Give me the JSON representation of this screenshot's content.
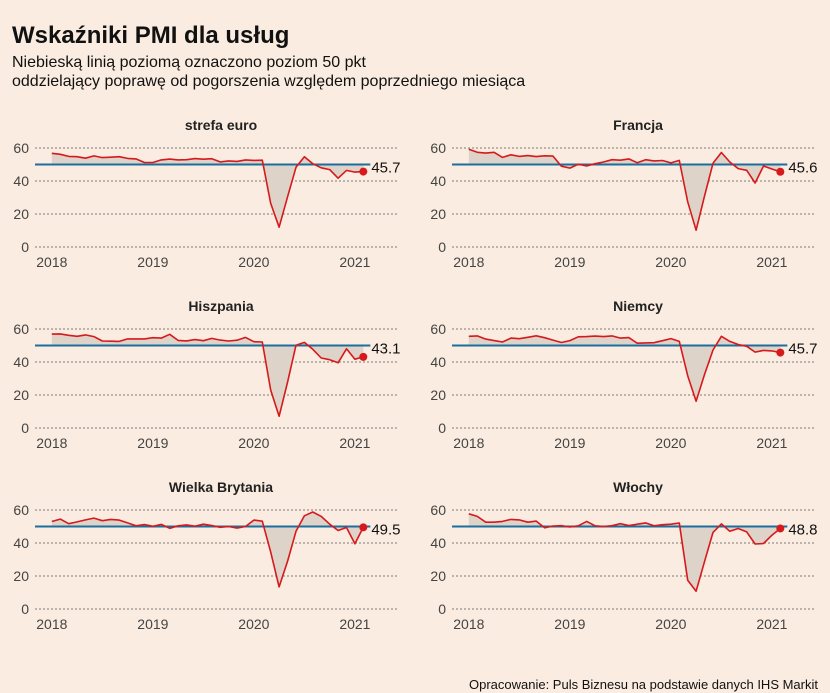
{
  "title": "Wskaźniki PMI dla usług",
  "subtitle_line1": "Niebieską linią poziomą oznaczono poziom 50 pkt",
  "subtitle_line2": "oddzielający poprawę od pogorszenia względem poprzedniego miesiąca",
  "source": "Opracowanie: Puls Biznesu na podstawie danych IHS Markit",
  "colors": {
    "background": "#faece0",
    "series_line": "#d7191c",
    "threshold_line": "#1b6e9e",
    "fill": "#ddd3c9",
    "grid": "#555555"
  },
  "chart_data": [
    {
      "type": "line",
      "title": "strefa euro",
      "x_ticks": [
        "2018",
        "2019",
        "2020",
        "2021"
      ],
      "y_ticks": [
        0,
        20,
        40,
        60
      ],
      "ylim": [
        0,
        65
      ],
      "xlim": [
        "2017-11",
        "2021-06"
      ],
      "threshold": 50,
      "last_label": "45.7",
      "series": [
        {
          "x": [
            "2018-01",
            "2018-02",
            "2018-03",
            "2018-04",
            "2018-05",
            "2018-06",
            "2018-07",
            "2018-08",
            "2018-09",
            "2018-10",
            "2018-11",
            "2018-12",
            "2019-01",
            "2019-02",
            "2019-03",
            "2019-04",
            "2019-05",
            "2019-06",
            "2019-07",
            "2019-08",
            "2019-09",
            "2019-10",
            "2019-11",
            "2019-12",
            "2020-01",
            "2020-02",
            "2020-03",
            "2020-04",
            "2020-05",
            "2020-06",
            "2020-07",
            "2020-08",
            "2020-09",
            "2020-10",
            "2020-11",
            "2020-12",
            "2021-01",
            "2021-02"
          ],
          "values": [
            56.8,
            56.2,
            54.9,
            54.7,
            53.8,
            55.2,
            54.2,
            54.4,
            54.7,
            53.7,
            53.4,
            51.2,
            51.2,
            52.8,
            53.3,
            52.8,
            52.9,
            53.6,
            53.2,
            53.5,
            51.6,
            52.2,
            51.9,
            52.8,
            52.5,
            52.6,
            26.4,
            12.0,
            30.5,
            48.3,
            54.7,
            50.5,
            48.0,
            46.9,
            41.7,
            46.4,
            45.4,
            45.7
          ]
        }
      ]
    },
    {
      "type": "line",
      "title": "Francja",
      "x_ticks": [
        "2018",
        "2019",
        "2020",
        "2021"
      ],
      "y_ticks": [
        0,
        20,
        40,
        60
      ],
      "ylim": [
        0,
        65
      ],
      "xlim": [
        "2017-11",
        "2021-06"
      ],
      "threshold": 50,
      "last_label": "45.6",
      "series": [
        {
          "x": [
            "2018-01",
            "2018-02",
            "2018-03",
            "2018-04",
            "2018-05",
            "2018-06",
            "2018-07",
            "2018-08",
            "2018-09",
            "2018-10",
            "2018-11",
            "2018-12",
            "2019-01",
            "2019-02",
            "2019-03",
            "2019-04",
            "2019-05",
            "2019-06",
            "2019-07",
            "2019-08",
            "2019-09",
            "2019-10",
            "2019-11",
            "2019-12",
            "2020-01",
            "2020-02",
            "2020-03",
            "2020-04",
            "2020-05",
            "2020-06",
            "2020-07",
            "2020-08",
            "2020-09",
            "2020-10",
            "2020-11",
            "2020-12",
            "2021-01",
            "2021-02"
          ],
          "values": [
            59.2,
            57.4,
            56.9,
            57.4,
            54.3,
            55.9,
            54.9,
            55.4,
            54.8,
            55.3,
            55.1,
            49.0,
            47.8,
            50.2,
            49.1,
            50.5,
            51.5,
            52.9,
            52.6,
            53.4,
            51.1,
            52.9,
            52.2,
            52.4,
            51.0,
            52.5,
            27.4,
            10.2,
            31.1,
            50.7,
            57.3,
            51.5,
            47.5,
            46.5,
            38.8,
            49.1,
            47.3,
            45.6
          ]
        }
      ]
    },
    {
      "type": "line",
      "title": "Hiszpania",
      "x_ticks": [
        "2018",
        "2019",
        "2020",
        "2021"
      ],
      "y_ticks": [
        0,
        20,
        40,
        60
      ],
      "ylim": [
        0,
        65
      ],
      "xlim": [
        "2017-11",
        "2021-06"
      ],
      "threshold": 50,
      "last_label": "43.1",
      "series": [
        {
          "x": [
            "2018-01",
            "2018-02",
            "2018-03",
            "2018-04",
            "2018-05",
            "2018-06",
            "2018-07",
            "2018-08",
            "2018-09",
            "2018-10",
            "2018-11",
            "2018-12",
            "2019-01",
            "2019-02",
            "2019-03",
            "2019-04",
            "2019-05",
            "2019-06",
            "2019-07",
            "2019-08",
            "2019-09",
            "2019-10",
            "2019-11",
            "2019-12",
            "2020-01",
            "2020-02",
            "2020-03",
            "2020-04",
            "2020-05",
            "2020-06",
            "2020-07",
            "2020-08",
            "2020-09",
            "2020-10",
            "2020-11",
            "2020-12",
            "2021-01",
            "2021-02"
          ],
          "values": [
            56.9,
            57.0,
            56.2,
            55.6,
            56.4,
            55.4,
            52.7,
            52.6,
            52.5,
            54.0,
            54.0,
            54.0,
            54.7,
            54.5,
            56.8,
            53.1,
            52.8,
            53.6,
            52.9,
            54.3,
            53.3,
            52.7,
            53.2,
            54.9,
            52.3,
            52.1,
            23.0,
            7.1,
            27.9,
            50.2,
            51.9,
            47.7,
            42.4,
            41.4,
            39.5,
            48.0,
            41.7,
            43.1
          ]
        }
      ]
    },
    {
      "type": "line",
      "title": "Niemcy",
      "x_ticks": [
        "2018",
        "2019",
        "2020",
        "2021"
      ],
      "y_ticks": [
        0,
        20,
        40,
        60
      ],
      "ylim": [
        0,
        65
      ],
      "xlim": [
        "2017-11",
        "2021-06"
      ],
      "threshold": 50,
      "last_label": "45.7",
      "series": [
        {
          "x": [
            "2018-01",
            "2018-02",
            "2018-03",
            "2018-04",
            "2018-05",
            "2018-06",
            "2018-07",
            "2018-08",
            "2018-09",
            "2018-10",
            "2018-11",
            "2018-12",
            "2019-01",
            "2019-02",
            "2019-03",
            "2019-04",
            "2019-05",
            "2019-06",
            "2019-07",
            "2019-08",
            "2019-09",
            "2019-10",
            "2019-11",
            "2019-12",
            "2020-01",
            "2020-02",
            "2020-03",
            "2020-04",
            "2020-05",
            "2020-06",
            "2020-07",
            "2020-08",
            "2020-09",
            "2020-10",
            "2020-11",
            "2020-12",
            "2021-01",
            "2021-02"
          ],
          "values": [
            55.6,
            55.8,
            53.9,
            53.0,
            52.1,
            54.5,
            54.1,
            55.0,
            55.9,
            54.7,
            53.3,
            51.8,
            53.0,
            55.3,
            55.4,
            55.7,
            55.4,
            55.8,
            54.5,
            54.8,
            51.4,
            51.6,
            51.7,
            52.9,
            54.2,
            52.5,
            31.7,
            16.2,
            32.6,
            47.3,
            55.6,
            52.5,
            50.6,
            49.5,
            46.0,
            47.0,
            46.7,
            45.7
          ]
        }
      ]
    },
    {
      "type": "line",
      "title": "Wielka Brytania",
      "x_ticks": [
        "2018",
        "2019",
        "2020",
        "2021"
      ],
      "y_ticks": [
        0,
        20,
        40,
        60
      ],
      "ylim": [
        0,
        65
      ],
      "xlim": [
        "2017-11",
        "2021-06"
      ],
      "threshold": 50,
      "last_label": "49.5",
      "series": [
        {
          "x": [
            "2018-01",
            "2018-02",
            "2018-03",
            "2018-04",
            "2018-05",
            "2018-06",
            "2018-07",
            "2018-08",
            "2018-09",
            "2018-10",
            "2018-11",
            "2018-12",
            "2019-01",
            "2019-02",
            "2019-03",
            "2019-04",
            "2019-05",
            "2019-06",
            "2019-07",
            "2019-08",
            "2019-09",
            "2019-10",
            "2019-11",
            "2019-12",
            "2020-01",
            "2020-02",
            "2020-03",
            "2020-04",
            "2020-05",
            "2020-06",
            "2020-07",
            "2020-08",
            "2020-09",
            "2020-10",
            "2020-11",
            "2020-12",
            "2021-01",
            "2021-02"
          ],
          "values": [
            53.0,
            54.5,
            51.7,
            52.8,
            54.0,
            55.1,
            53.5,
            54.3,
            53.9,
            52.2,
            50.4,
            51.2,
            50.1,
            51.3,
            48.9,
            50.4,
            51.0,
            50.2,
            51.4,
            50.6,
            49.5,
            50.0,
            49.0,
            50.0,
            53.9,
            53.2,
            34.5,
            13.4,
            29.0,
            47.1,
            56.5,
            58.8,
            56.1,
            51.4,
            47.6,
            49.4,
            39.5,
            49.5
          ]
        }
      ]
    },
    {
      "type": "line",
      "title": "Włochy",
      "x_ticks": [
        "2018",
        "2019",
        "2020",
        "2021"
      ],
      "y_ticks": [
        0,
        20,
        40,
        60
      ],
      "ylim": [
        0,
        65
      ],
      "xlim": [
        "2017-11",
        "2021-06"
      ],
      "threshold": 50,
      "last_label": "48.8",
      "series": [
        {
          "x": [
            "2018-01",
            "2018-02",
            "2018-03",
            "2018-04",
            "2018-05",
            "2018-06",
            "2018-07",
            "2018-08",
            "2018-09",
            "2018-10",
            "2018-11",
            "2018-12",
            "2019-01",
            "2019-02",
            "2019-03",
            "2019-04",
            "2019-05",
            "2019-06",
            "2019-07",
            "2019-08",
            "2019-09",
            "2019-10",
            "2019-11",
            "2019-12",
            "2020-01",
            "2020-02",
            "2020-03",
            "2020-04",
            "2020-05",
            "2020-06",
            "2020-07",
            "2020-08",
            "2020-09",
            "2020-10",
            "2020-11",
            "2020-12",
            "2021-01",
            "2021-02"
          ],
          "values": [
            57.7,
            56.1,
            52.6,
            52.6,
            53.1,
            54.3,
            54.0,
            52.6,
            53.3,
            49.2,
            50.3,
            50.5,
            49.7,
            50.4,
            53.1,
            50.4,
            50.0,
            50.5,
            51.7,
            50.6,
            51.4,
            52.2,
            50.4,
            51.1,
            51.4,
            52.1,
            17.4,
            10.8,
            28.9,
            46.4,
            51.6,
            47.1,
            48.8,
            46.7,
            39.4,
            39.7,
            44.7,
            48.8
          ]
        }
      ]
    }
  ]
}
